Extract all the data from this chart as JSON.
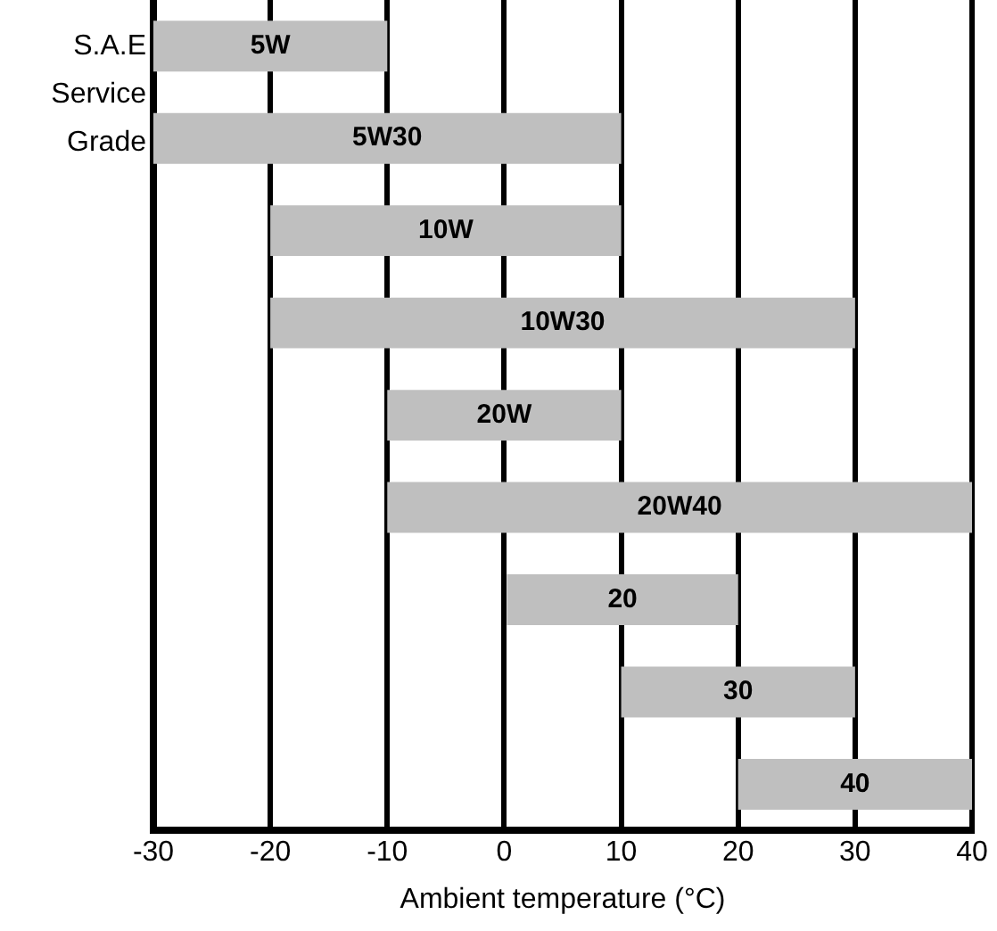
{
  "chart_data": {
    "type": "bar",
    "orientation": "horizontal",
    "ylabel": "S.A.E Service Grade",
    "xlabel": "Ambient temperature (°C)",
    "categories": [
      "5W",
      "5W30",
      "10W",
      "10W30",
      "20W",
      "20W40",
      "20",
      "30",
      "40"
    ],
    "base": [
      -30,
      -30,
      -20,
      -20,
      -10,
      -10,
      0,
      10,
      20
    ],
    "values": [
      20,
      40,
      30,
      50,
      20,
      50,
      20,
      20,
      20
    ],
    "color": "#bfbfbf",
    "xlim": [
      -30,
      40
    ],
    "xticks": [
      -30,
      -20,
      -10,
      0,
      10,
      20,
      30,
      40
    ],
    "grid": "x",
    "tick_labels": "x"
  }
}
